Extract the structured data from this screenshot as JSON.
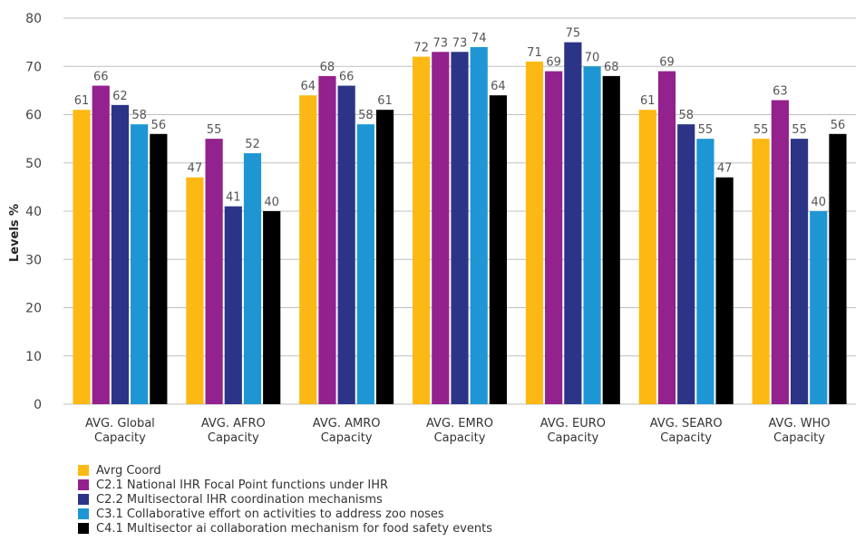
{
  "chart_data": {
    "type": "bar",
    "ylabel": "Levels %",
    "xlabel": "",
    "ylim": [
      0,
      80
    ],
    "yticks": [
      0,
      10,
      20,
      30,
      40,
      50,
      60,
      70,
      80
    ],
    "grid": true,
    "legend_position": "bottom-left",
    "categories": [
      [
        "AVG. Global",
        "Capacity"
      ],
      [
        "AVG. AFRO",
        "Capacity"
      ],
      [
        "AVG. AMRO",
        "Capacity"
      ],
      [
        "AVG. EMRO",
        "Capacity"
      ],
      [
        "AVG. EURO",
        "Capacity"
      ],
      [
        "AVG. SEARO",
        "Capacity"
      ],
      [
        "AVG. WHO",
        "Capacity"
      ]
    ],
    "series": [
      {
        "name": "Avrg Coord",
        "color": "#FDB913",
        "values": [
          61,
          47,
          64,
          72,
          71,
          61,
          55
        ]
      },
      {
        "name": "C2.1 National IHR Focal Point functions under IHR",
        "color": "#93218E",
        "values": [
          66,
          55,
          68,
          73,
          69,
          69,
          63
        ]
      },
      {
        "name": "C2.2 Multisectoral IHR coordination mechanisms",
        "color": "#2C3487",
        "values": [
          62,
          41,
          66,
          73,
          75,
          58,
          55
        ]
      },
      {
        "name": "C3.1 Collaborative effort on activities to address zoo noses",
        "color": "#1E96D4",
        "values": [
          58,
          52,
          58,
          74,
          70,
          55,
          40
        ]
      },
      {
        "name": "C4.1 Multisector ai collaboration mechanism for food safety events",
        "color": "#000000",
        "values": [
          56,
          40,
          61,
          64,
          68,
          47,
          56
        ]
      }
    ]
  }
}
